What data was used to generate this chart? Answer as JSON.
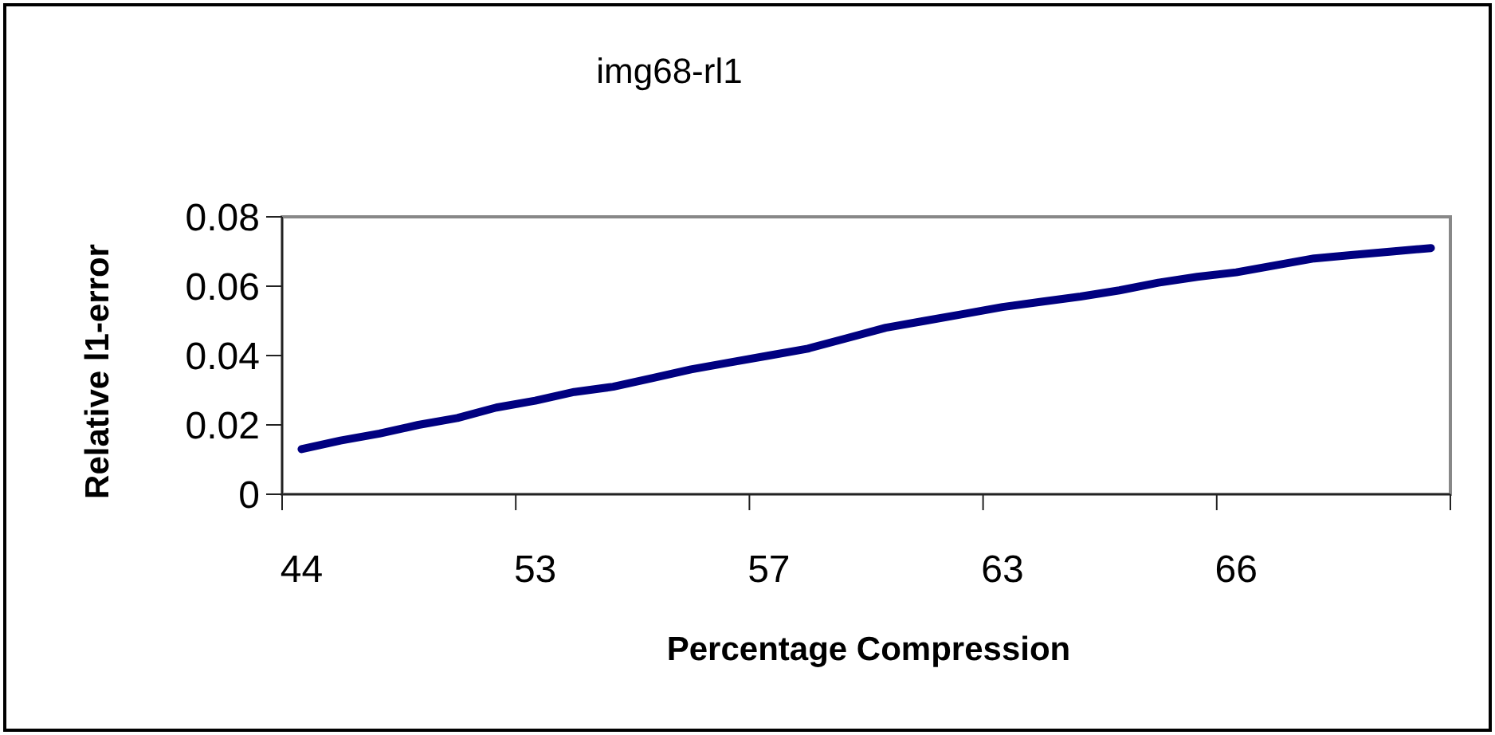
{
  "chart_data": {
    "type": "line",
    "title": "img68-rl1",
    "xlabel": "Percentage Compression",
    "ylabel": "Relative l1-error",
    "categories": [
      "44",
      null,
      null,
      null,
      null,
      null,
      "53",
      null,
      null,
      null,
      null,
      null,
      "57",
      null,
      null,
      null,
      null,
      null,
      "63",
      null,
      null,
      null,
      null,
      null,
      "66",
      null,
      null,
      null,
      null,
      null
    ],
    "series": [
      {
        "color": "#000080",
        "values": [
          0.013,
          0.0155,
          0.0175,
          0.02,
          0.022,
          0.025,
          0.027,
          0.0295,
          0.031,
          0.0335,
          0.036,
          0.038,
          0.04,
          0.042,
          0.045,
          0.048,
          0.05,
          0.052,
          0.054,
          0.0555,
          0.057,
          0.0588,
          0.061,
          0.0627,
          0.064,
          0.066,
          0.068,
          0.069,
          0.07,
          0.071
        ]
      }
    ],
    "ylim": [
      0,
      0.08
    ],
    "yticks": [
      {
        "value": 0,
        "label": "0"
      },
      0.02,
      0.04,
      0.06,
      0.08
    ],
    "grid": false,
    "marker": "none",
    "line_style": "solid"
  }
}
